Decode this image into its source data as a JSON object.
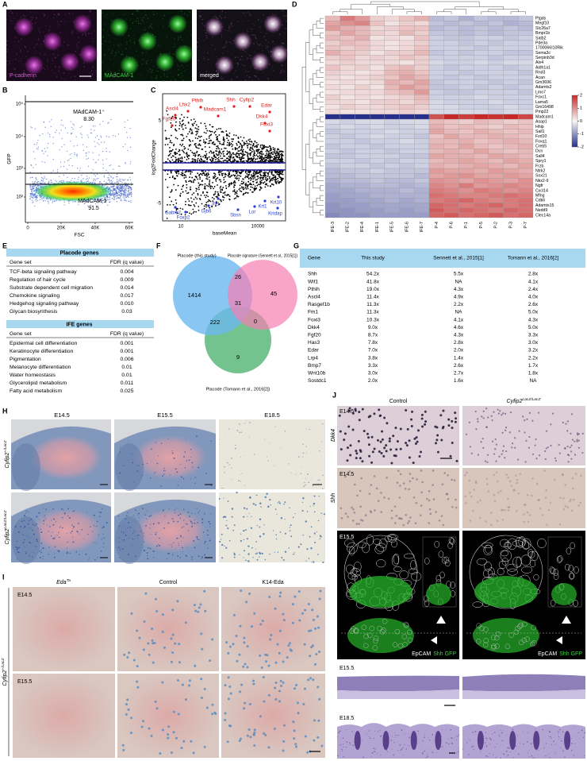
{
  "A": {
    "label": "A",
    "images": [
      "P-cadherin",
      "MAdCAM-1",
      "merged"
    ]
  },
  "B": {
    "label": "B",
    "gates": [
      {
        "name": "MAdCAM-1⁺",
        "value": "8.30"
      },
      {
        "name": "MAdCAM-1⁻",
        "value": "91.5"
      }
    ],
    "ylabel": "GFP",
    "xlabel": "FSC",
    "yticks": [
      "10⁵",
      "10⁴",
      "10³",
      "10²"
    ],
    "xticks": [
      "0",
      "20K",
      "40K",
      "60K"
    ]
  },
  "C": {
    "label": "C",
    "ylabel": "log2FoldChange",
    "xlabel": "baseMean",
    "yticks": [
      "5",
      "-5"
    ],
    "xticks": [
      "10",
      "10000"
    ],
    "up_genes": [
      "Ascl4",
      "Lhx2",
      "Pthlh",
      "Fgf20",
      "Shh",
      "Cyfip2",
      "Madcam1",
      "Edar",
      "Dkk4",
      "Foxi3"
    ],
    "down_genes": [
      "Gabrb2",
      "Foxp2",
      "Gjb6",
      "Ifit1",
      "Sbsn",
      "Lor",
      "Krt1",
      "Krt10",
      "Krtdap"
    ]
  },
  "D": {
    "label": "D",
    "columns": [
      "IFE-3",
      "IFE-2",
      "IFE-4",
      "IFE-1",
      "IFE-5",
      "IFE-6",
      "IFE-7",
      "P-4",
      "P-6",
      "P-1",
      "P-5",
      "P-2",
      "P-3",
      "P-7"
    ],
    "genes": [
      "Ptgds",
      "Megf10",
      "Slc26a7",
      "Bmpr1b",
      "Satb2",
      "Pde3a",
      "1700066I10Rik",
      "Sema3c",
      "Serpinb3d",
      "Alx4",
      "Aldh1a1",
      "Rnd3",
      "Acan",
      "Gm3696",
      "Adamts2",
      "Lmo7",
      "Foxc1",
      "Lama5",
      "Gm16498",
      "Pmp22",
      "Madcam1",
      "Asap1",
      "Hhip",
      "Sall1",
      "Fzd10",
      "Foxq1",
      "Creb5",
      "Dcn",
      "Sall4",
      "Spry1",
      "Frzb",
      "Ntrk2",
      "Sox21",
      "Nkx2-9",
      "Ngfr",
      "Cxcl14",
      "Mfng",
      "Cdk6",
      "Adamts15",
      "Nedd9",
      "Clec14a"
    ],
    "values": [
      [
        0.6,
        1.2,
        0.9,
        0.4,
        0.3,
        0.5,
        0.7,
        -0.6,
        -0.5,
        -0.7,
        -0.5,
        -0.6,
        -0.6,
        -0.5
      ],
      [
        0.8,
        1.0,
        1.1,
        0.5,
        0.2,
        0.4,
        0.3,
        -0.5,
        -0.6,
        -0.5,
        -0.6,
        -0.5,
        -0.7,
        -0.6
      ],
      [
        0.9,
        0.7,
        0.6,
        0.3,
        0.4,
        0.5,
        0.5,
        -0.6,
        -0.5,
        -0.6,
        -0.5,
        -0.6,
        -0.5,
        -0.6
      ],
      [
        0.5,
        0.8,
        0.6,
        0.4,
        0.3,
        0.6,
        0.4,
        -0.5,
        -0.5,
        -0.6,
        -0.5,
        -0.6,
        -0.5,
        -0.5
      ],
      [
        0.6,
        0.5,
        0.7,
        0.2,
        0.3,
        0.2,
        0.5,
        -0.4,
        -0.5,
        -0.5,
        -0.4,
        -0.4,
        -0.5,
        -0.4
      ],
      [
        0.4,
        0.6,
        0.5,
        0.3,
        0.2,
        0.3,
        0.4,
        -0.4,
        -0.4,
        -0.5,
        -0.4,
        -0.5,
        -0.4,
        -0.4
      ],
      [
        0.5,
        0.4,
        0.5,
        0.3,
        0.2,
        0.3,
        0.5,
        -0.4,
        -0.4,
        -0.4,
        -0.5,
        -0.4,
        -0.4,
        -0.4
      ],
      [
        0.7,
        0.5,
        0.4,
        0.2,
        0.4,
        0.4,
        0.6,
        -0.5,
        -0.4,
        -0.5,
        -0.4,
        -0.4,
        -0.5,
        -0.5
      ],
      [
        0.4,
        0.5,
        0.3,
        0.4,
        0.3,
        0.5,
        0.4,
        -0.4,
        -0.4,
        -0.4,
        -0.4,
        -0.5,
        -0.4,
        -0.4
      ],
      [
        0.3,
        0.4,
        0.3,
        0.3,
        0.3,
        0.2,
        0.4,
        -0.3,
        -0.4,
        -0.4,
        -0.3,
        -0.4,
        -0.3,
        -0.3
      ],
      [
        0.5,
        0.3,
        0.4,
        0.2,
        0.5,
        0.6,
        0.4,
        -0.4,
        -0.5,
        -0.4,
        -0.4,
        -0.4,
        -0.5,
        -0.4
      ],
      [
        0.4,
        0.3,
        0.2,
        0.3,
        0.6,
        0.7,
        0.5,
        -0.4,
        -0.4,
        -0.5,
        -0.4,
        -0.4,
        -0.4,
        -0.5
      ],
      [
        0.3,
        0.2,
        0.3,
        0.4,
        0.5,
        0.8,
        0.6,
        -0.4,
        -0.5,
        -0.4,
        -0.5,
        -0.4,
        -0.4,
        -0.4
      ],
      [
        0.2,
        0.3,
        0.2,
        0.3,
        0.7,
        0.6,
        0.8,
        -0.5,
        -0.4,
        -0.4,
        -0.4,
        -0.5,
        -0.4,
        -0.5
      ],
      [
        0.3,
        0.2,
        0.4,
        0.2,
        0.6,
        0.9,
        0.7,
        -0.5,
        -0.5,
        -0.4,
        -0.5,
        -0.4,
        -0.5,
        -0.4
      ],
      [
        0.2,
        0.3,
        0.3,
        0.3,
        0.5,
        0.6,
        0.9,
        -0.4,
        -0.5,
        -0.5,
        -0.4,
        -0.4,
        -0.4,
        -0.5
      ],
      [
        0.4,
        0.2,
        0.3,
        0.2,
        0.3,
        0.4,
        0.6,
        -0.4,
        -0.4,
        -0.4,
        -0.3,
        -0.4,
        -0.4,
        -0.4
      ],
      [
        0.3,
        0.3,
        0.2,
        0.4,
        0.4,
        0.3,
        0.5,
        -0.3,
        -0.4,
        -0.4,
        -0.4,
        -0.3,
        -0.4,
        -0.4
      ],
      [
        0.2,
        0.4,
        0.3,
        0.3,
        0.4,
        0.5,
        0.4,
        -0.3,
        -0.3,
        -0.4,
        -0.4,
        -0.4,
        -0.3,
        -0.4
      ],
      [
        0.3,
        0.2,
        0.2,
        0.3,
        0.3,
        0.4,
        0.3,
        -0.3,
        -0.3,
        -0.3,
        -0.3,
        -0.4,
        -0.3,
        -0.3
      ],
      [
        -2,
        -2,
        -2,
        -2,
        -2,
        -2,
        -2,
        1.6,
        2,
        1.8,
        2.2,
        1.9,
        2.1,
        1.7
      ],
      [
        -0.3,
        -0.4,
        -0.3,
        -0.3,
        -0.4,
        -0.3,
        -0.3,
        0.6,
        0.5,
        0.4,
        0.6,
        0.5,
        0.4,
        0.5
      ],
      [
        -0.4,
        -0.3,
        -0.4,
        -0.3,
        -0.4,
        -0.4,
        -0.3,
        0.7,
        0.5,
        0.6,
        0.5,
        0.4,
        0.6,
        0.5
      ],
      [
        -0.5,
        -0.4,
        -0.4,
        -0.4,
        -0.3,
        -0.4,
        -0.4,
        0.8,
        0.6,
        0.5,
        0.7,
        0.6,
        0.5,
        0.6
      ],
      [
        -0.4,
        -0.5,
        -0.4,
        -0.3,
        -0.4,
        -0.4,
        -0.5,
        0.5,
        0.8,
        0.6,
        0.6,
        0.7,
        0.6,
        0.5
      ],
      [
        -0.4,
        -0.4,
        -0.5,
        -0.4,
        -0.4,
        -0.3,
        -0.4,
        0.6,
        0.6,
        0.7,
        0.5,
        0.6,
        0.7,
        0.6
      ],
      [
        -0.5,
        -0.4,
        -0.4,
        -0.5,
        -0.4,
        -0.4,
        -0.4,
        0.7,
        0.6,
        0.8,
        0.6,
        0.5,
        0.6,
        0.7
      ],
      [
        -0.4,
        -0.5,
        -0.4,
        -0.4,
        -0.5,
        -0.4,
        -0.4,
        0.6,
        0.7,
        0.6,
        0.8,
        0.6,
        0.5,
        0.6
      ],
      [
        -0.5,
        -0.5,
        -0.4,
        -0.4,
        -0.4,
        -0.5,
        -0.5,
        0.8,
        0.7,
        0.7,
        0.6,
        0.8,
        0.7,
        0.6
      ],
      [
        -0.4,
        -0.4,
        -0.5,
        -0.4,
        -0.5,
        -0.4,
        -0.4,
        0.6,
        0.7,
        0.8,
        0.7,
        0.6,
        0.8,
        0.7
      ],
      [
        -0.5,
        -0.4,
        -0.4,
        -0.5,
        -0.4,
        -0.5,
        -0.4,
        0.7,
        0.6,
        0.7,
        0.8,
        0.7,
        0.6,
        0.8
      ],
      [
        -0.6,
        -0.5,
        -0.5,
        -0.4,
        -0.5,
        -0.5,
        -0.5,
        0.9,
        0.8,
        0.8,
        0.7,
        0.9,
        0.8,
        0.7
      ],
      [
        -0.6,
        -0.6,
        -0.5,
        -0.5,
        -0.5,
        -0.5,
        -0.6,
        0.8,
        0.9,
        1.0,
        0.8,
        0.8,
        0.9,
        0.8
      ],
      [
        -0.7,
        -0.6,
        -0.6,
        -0.5,
        -0.6,
        -0.6,
        -0.5,
        1.0,
        0.9,
        0.8,
        1.0,
        0.9,
        0.8,
        1.0
      ],
      [
        -0.8,
        -0.7,
        -0.7,
        -0.6,
        -0.6,
        -0.7,
        -0.6,
        1.1,
        1.0,
        1.2,
        0.9,
        1.0,
        1.1,
        1.0
      ],
      [
        -0.8,
        -0.8,
        -0.7,
        -0.7,
        -0.7,
        -0.6,
        -0.7,
        1.2,
        1.1,
        1.0,
        1.2,
        1.1,
        1.0,
        1.1
      ],
      [
        -0.9,
        -0.8,
        -0.8,
        -0.7,
        -0.7,
        -0.7,
        -0.7,
        1.3,
        1.2,
        1.1,
        1.1,
        1.2,
        1.3,
        1.2
      ],
      [
        -0.9,
        -0.9,
        -0.8,
        -0.8,
        -0.7,
        -0.8,
        -0.7,
        1.2,
        1.3,
        1.4,
        1.2,
        1.1,
        1.2,
        1.3
      ],
      [
        -1.0,
        -0.9,
        -0.9,
        -0.8,
        -0.8,
        -0.8,
        -0.8,
        1.4,
        1.3,
        1.2,
        1.3,
        1.4,
        1.2,
        1.3
      ],
      [
        -1.0,
        -1.0,
        -0.9,
        -0.9,
        -0.8,
        -0.9,
        -0.8,
        1.5,
        1.3,
        1.4,
        1.3,
        1.2,
        1.4,
        1.3
      ],
      [
        -1.1,
        -1.0,
        -1.0,
        -0.9,
        -0.9,
        -0.9,
        -0.9,
        1.4,
        1.5,
        1.3,
        1.4,
        1.5,
        1.3,
        1.4
      ]
    ],
    "zlim": [
      -2,
      2
    ],
    "zticks": [
      2,
      1,
      0,
      -1,
      -2
    ],
    "colors": {
      "low": "#262f8c",
      "mid": "#f7f7f7",
      "high": "#c62828"
    }
  },
  "E": {
    "label": "E",
    "sections": [
      {
        "title": "Placode genes",
        "header": [
          "Gene set",
          "FDR (q value)"
        ],
        "rows": [
          [
            "TCF-beta signaling pathway",
            "0.004"
          ],
          [
            "Regulation of hair cycle",
            "0.009"
          ],
          [
            "Substrate dependent cell migration",
            "0.014"
          ],
          [
            "Chemokine signaling",
            "0.017"
          ],
          [
            "Hedgehog signaling pathway",
            "0.010"
          ],
          [
            "Glycan biosynthesis",
            "0.03"
          ]
        ]
      },
      {
        "title": "IFE genes",
        "header": [
          "Gene set",
          "FDR (q value)"
        ],
        "rows": [
          [
            "Epidermal cell differentiation",
            "0.001"
          ],
          [
            "Keratinocyte differentiation",
            "0.001"
          ],
          [
            "Pigmentation",
            "0.006"
          ],
          [
            "Melanocyte differentiation",
            "0.01"
          ],
          [
            "Water homeostasis",
            "0.01"
          ],
          [
            "Glycerolipid metabolism",
            "0.011"
          ],
          [
            "Fatty acid metabolism",
            "0.025"
          ]
        ]
      }
    ]
  },
  "F": {
    "label": "F",
    "sets": [
      "Placode (this study)",
      "Placode signature (Sennett et al., 2015[1])",
      "Placode (Tomann et al., 2016[2])"
    ],
    "regions": [
      "1414",
      "26",
      "45",
      "31",
      "222",
      "0",
      "9"
    ]
  },
  "G": {
    "label": "G",
    "header": [
      "Gene",
      "This study",
      "Sennett et al., 2015[1]",
      "Tomann et al., 2016[2]"
    ],
    "rows": [
      [
        "Shh",
        "54.2x",
        "5.5x",
        "2.8x"
      ],
      [
        "Wif1",
        "41.8x",
        "NA",
        "4.1x"
      ],
      [
        "Pthlh",
        "19.0x",
        "4.3x",
        "2.4x"
      ],
      [
        "Ascl4",
        "11.4x",
        "4.9x",
        "4.0x"
      ],
      [
        "Rasgef1b",
        "11.3x",
        "2.2x",
        "2.6x"
      ],
      [
        "Fm1",
        "11.3x",
        "NA",
        "5.0x"
      ],
      [
        "Foxi3",
        "10.3x",
        "4.1x",
        "4.3x"
      ],
      [
        "Dkk4",
        "9.0x",
        "4.6x",
        "5.0x"
      ],
      [
        "Fgf20",
        "8.7x",
        "4.3x",
        "3.3x"
      ],
      [
        "Has3",
        "7.8x",
        "2.8x",
        "3.0x"
      ],
      [
        "Edar",
        "7.0x",
        "2.0x",
        "3.2x"
      ],
      [
        "Lrp4",
        "3.8x",
        "1.4x",
        "2.2x"
      ],
      [
        "Bmp7",
        "3.3x",
        "2.6x",
        "1.7x"
      ],
      [
        "Wnt10b",
        "3.0x",
        "2.7x",
        "1.8x"
      ],
      [
        "Sostdc1",
        "2.0x",
        "1.6x",
        "NA"
      ]
    ]
  },
  "H": {
    "label": "H",
    "columns": [
      "E14.5",
      "E15.5",
      "E18.5"
    ],
    "rows": [
      {
        "gene": "Cyfip2",
        "allele": "+/LacZ"
      },
      {
        "gene": "Cyfip2",
        "allele": "LacZ/LacZ"
      }
    ]
  },
  "I": {
    "label": "I",
    "columns": [
      {
        "gene": "Eda",
        "allele": "Ta"
      },
      {
        "gene": "Control"
      },
      {
        "gene": "K14-Eda"
      }
    ],
    "stages": [
      "E14.5",
      "E15.5"
    ],
    "genotype": {
      "gene": "Cyfip2",
      "allele": "+/LacZ"
    }
  },
  "J": {
    "label": "J",
    "columns": [
      {
        "gene": "Control"
      },
      {
        "gene": "Cyfip2",
        "allele": "LacZ/LacZ"
      }
    ],
    "rows": [
      {
        "stage": "E14.5",
        "marker": "Dkk4"
      },
      {
        "stage": "E14.5",
        "marker": "Shh"
      },
      {
        "stage": "E15.5",
        "stain": [
          "EpCAM",
          "Shh GFP"
        ]
      },
      {
        "stage": "E15.5"
      },
      {
        "stage": "E18.5"
      }
    ]
  }
}
